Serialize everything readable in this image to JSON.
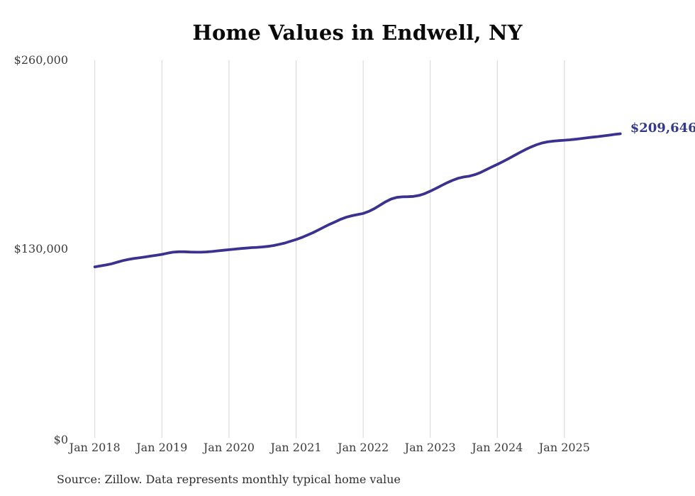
{
  "chart_data": {
    "type": "line",
    "title": "Home Values in Endwell, NY",
    "source_note": "Source: Zillow. Data represents monthly typical home value",
    "end_label": "$209,646",
    "x_tick_labels": [
      "Jan 2018",
      "Jan 2019",
      "Jan 2020",
      "Jan 2021",
      "Jan 2022",
      "Jan 2023",
      "Jan 2024",
      "Jan 2025"
    ],
    "y_tick_labels": [
      "$0",
      "$130,000",
      "$260,000"
    ],
    "y_tick_values": [
      0,
      130000,
      260000
    ],
    "ylim": [
      0,
      260000
    ],
    "x_start_month": "2018-01",
    "x_end_month": "2025-11",
    "cadence": "monthly",
    "grid": "vertical-only",
    "legend": "none",
    "colors": {
      "line": "#3b3191",
      "end_label": "#333a8e",
      "grid": "#d6d6d6",
      "axis_text": "#3d3d3d",
      "title_text": "#0a0a0a"
    },
    "series": [
      {
        "name": "Typical home value",
        "values": [
          118000,
          118600,
          119300,
          120100,
          121200,
          122300,
          123100,
          123800,
          124300,
          124800,
          125400,
          126000,
          126600,
          127400,
          128100,
          128400,
          128400,
          128200,
          128100,
          128100,
          128300,
          128600,
          129000,
          129400,
          129800,
          130200,
          130600,
          130900,
          131200,
          131400,
          131700,
          132100,
          132700,
          133500,
          134400,
          135600,
          136800,
          138200,
          139800,
          141500,
          143400,
          145400,
          147300,
          149000,
          150800,
          152200,
          153200,
          154000,
          154800,
          156200,
          158100,
          160400,
          162800,
          164700,
          165800,
          166200,
          166300,
          166500,
          167200,
          168400,
          170100,
          172000,
          174000,
          175900,
          177600,
          179000,
          179900,
          180500,
          181500,
          183000,
          184900,
          186800,
          188600,
          190500,
          192500,
          194600,
          196700,
          198700,
          200500,
          202100,
          203300,
          204100,
          204600,
          204900,
          205200,
          205500,
          205900,
          206400,
          206900,
          207300,
          207700,
          208200,
          208700,
          209200,
          209646
        ]
      }
    ]
  }
}
